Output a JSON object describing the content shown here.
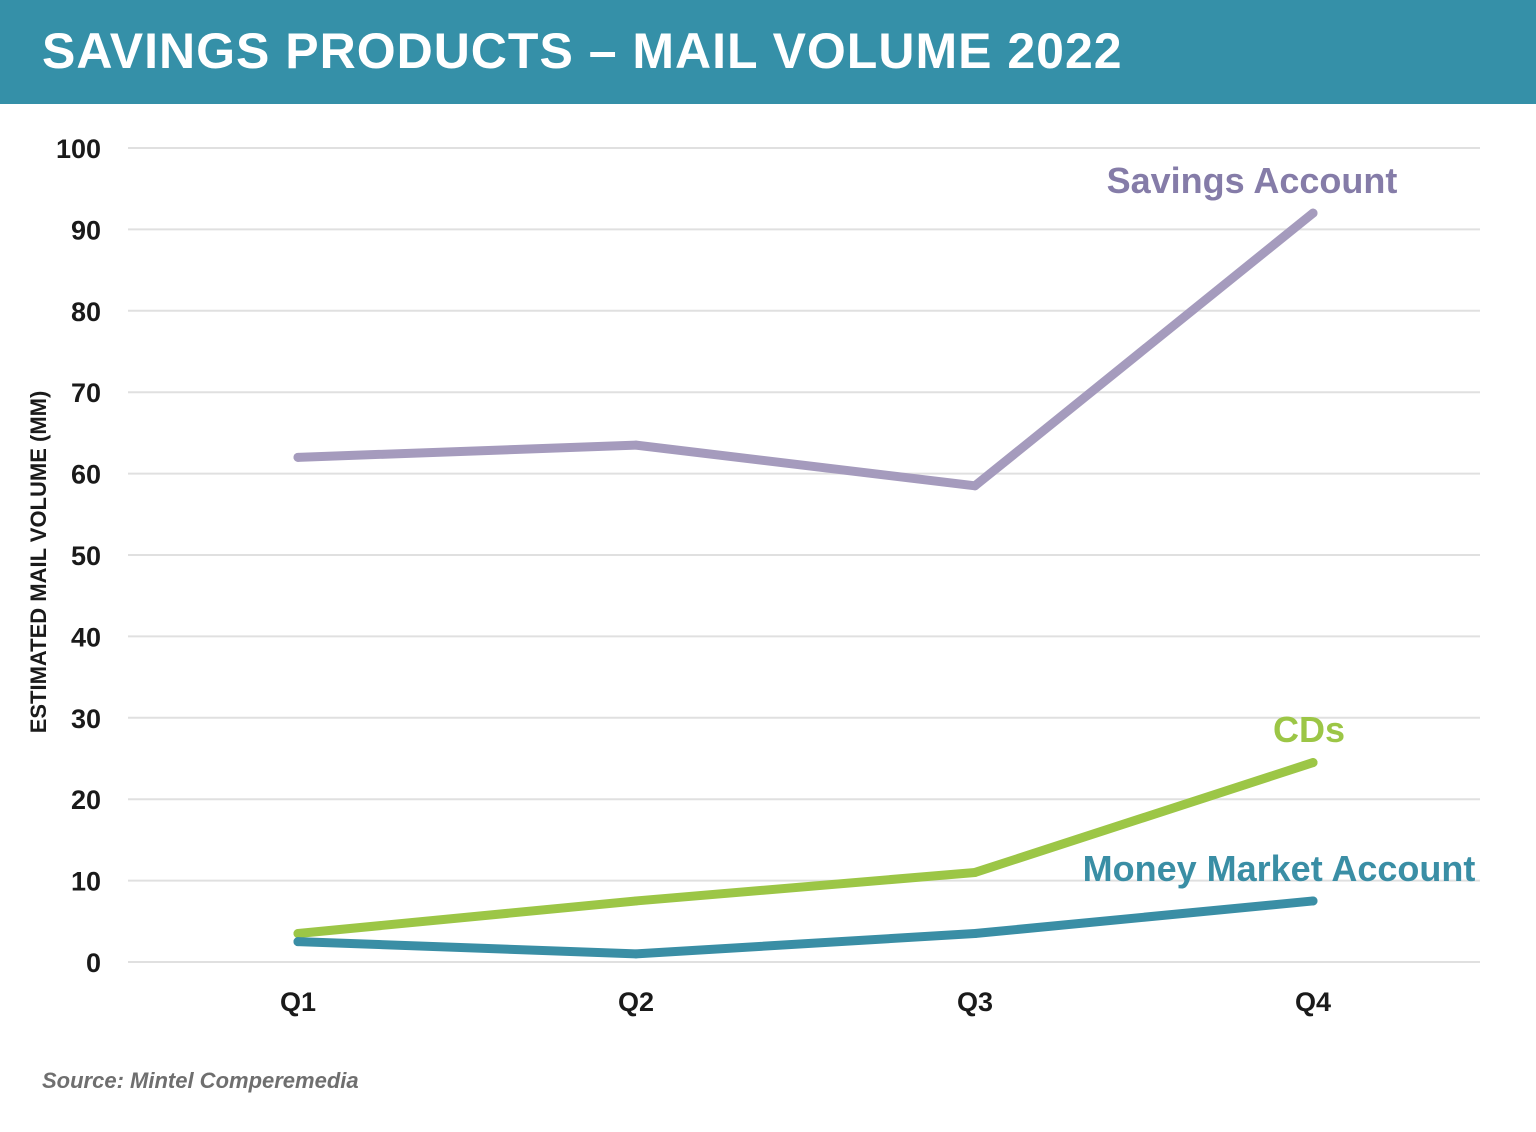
{
  "header": {
    "title": "SAVINGS PRODUCTS – MAIL VOLUME 2022"
  },
  "chart_data": {
    "type": "line",
    "title": "SAVINGS PRODUCTS – MAIL VOLUME 2022",
    "xlabel": "",
    "ylabel": "ESTIMATED MAIL VOLUME (MM)",
    "categories": [
      "Q1",
      "Q2",
      "Q3",
      "Q4"
    ],
    "ylim": [
      0,
      100
    ],
    "yticks": [
      0,
      10,
      20,
      30,
      40,
      50,
      60,
      70,
      80,
      90,
      100
    ],
    "grid": true,
    "legend": "inline labels at series ends",
    "series": [
      {
        "name": "Savings Account",
        "color": "#a59bbd",
        "label_color": "#857ca8",
        "values": [
          62,
          63.5,
          58.5,
          92
        ]
      },
      {
        "name": "CDs",
        "color": "#9cc646",
        "label_color": "#9cc646",
        "values": [
          3.5,
          7.5,
          11,
          24.5
        ]
      },
      {
        "name": "Money Market Account",
        "color": "#3a8ea5",
        "label_color": "#3a8ea5",
        "values": [
          2.5,
          1,
          3.5,
          7.5
        ]
      }
    ]
  },
  "footer": {
    "source": "Source: Mintel Comperemedia"
  }
}
